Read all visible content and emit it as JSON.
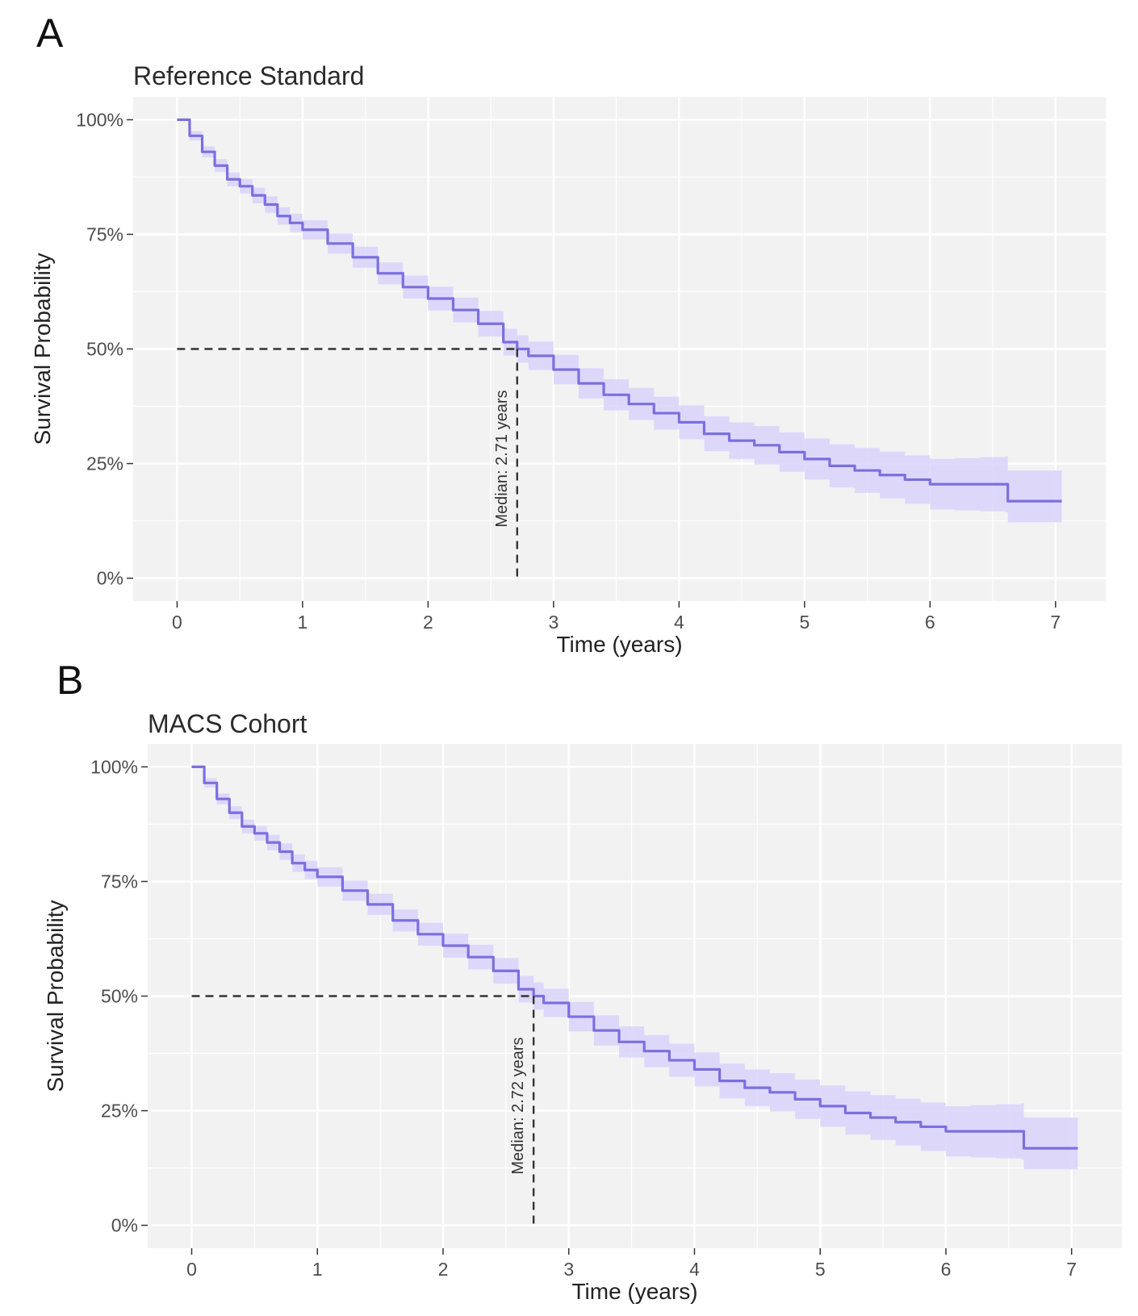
{
  "figure": {
    "panels": [
      "A",
      "B"
    ]
  },
  "chart_data": [
    {
      "panel": "A",
      "type": "line",
      "title": "Reference Standard",
      "xlabel": "Time (years)",
      "ylabel": "Survival Probability",
      "xlim": [
        -0.35,
        7.4
      ],
      "ylim": [
        -0.05,
        1.05
      ],
      "x_ticks": [
        0,
        1,
        2,
        3,
        4,
        5,
        6,
        7
      ],
      "y_ticks": [
        0,
        0.25,
        0.5,
        0.75,
        1.0
      ],
      "y_tick_labels": [
        "0%",
        "25%",
        "50%",
        "75%",
        "100%"
      ],
      "grid": true,
      "median": 2.71,
      "median_label": "Median: 2.71 years",
      "series": [
        {
          "name": "survival",
          "color": "#7b6fe0",
          "band_color": "#d9d4fb",
          "x": [
            0,
            0.1,
            0.2,
            0.3,
            0.4,
            0.5,
            0.6,
            0.7,
            0.8,
            0.9,
            1.0,
            1.2,
            1.4,
            1.6,
            1.8,
            2.0,
            2.2,
            2.4,
            2.6,
            2.71,
            2.8,
            3.0,
            3.2,
            3.4,
            3.6,
            3.8,
            4.0,
            4.2,
            4.4,
            4.6,
            4.8,
            5.0,
            5.2,
            5.4,
            5.6,
            5.8,
            6.0,
            6.2,
            6.4,
            6.6,
            6.62,
            7.05
          ],
          "y": [
            1.0,
            0.965,
            0.93,
            0.9,
            0.87,
            0.855,
            0.835,
            0.815,
            0.79,
            0.775,
            0.76,
            0.73,
            0.7,
            0.665,
            0.635,
            0.61,
            0.585,
            0.555,
            0.515,
            0.5,
            0.485,
            0.455,
            0.425,
            0.4,
            0.38,
            0.36,
            0.34,
            0.315,
            0.3,
            0.29,
            0.275,
            0.26,
            0.245,
            0.235,
            0.225,
            0.215,
            0.205,
            0.205,
            0.205,
            0.205,
            0.168,
            0.168
          ],
          "lower": [
            1.0,
            0.955,
            0.918,
            0.886,
            0.855,
            0.839,
            0.818,
            0.797,
            0.771,
            0.755,
            0.739,
            0.708,
            0.677,
            0.641,
            0.61,
            0.584,
            0.558,
            0.527,
            0.486,
            0.47,
            0.454,
            0.423,
            0.392,
            0.366,
            0.345,
            0.324,
            0.303,
            0.277,
            0.26,
            0.248,
            0.232,
            0.215,
            0.198,
            0.186,
            0.174,
            0.162,
            0.15,
            0.148,
            0.146,
            0.144,
            0.122,
            0.122
          ],
          "upper": [
            1.0,
            0.975,
            0.942,
            0.914,
            0.885,
            0.871,
            0.852,
            0.833,
            0.809,
            0.795,
            0.781,
            0.752,
            0.723,
            0.689,
            0.66,
            0.636,
            0.612,
            0.583,
            0.544,
            0.53,
            0.516,
            0.487,
            0.458,
            0.434,
            0.415,
            0.396,
            0.377,
            0.353,
            0.34,
            0.332,
            0.318,
            0.305,
            0.292,
            0.284,
            0.276,
            0.268,
            0.26,
            0.262,
            0.264,
            0.266,
            0.235,
            0.235
          ]
        }
      ]
    },
    {
      "panel": "B",
      "type": "line",
      "title": "MACS Cohort",
      "xlabel": "Time (years)",
      "ylabel": "Survival Probability",
      "xlim": [
        -0.35,
        7.4
      ],
      "ylim": [
        -0.05,
        1.05
      ],
      "x_ticks": [
        0,
        1,
        2,
        3,
        4,
        5,
        6,
        7
      ],
      "y_ticks": [
        0,
        0.25,
        0.5,
        0.75,
        1.0
      ],
      "y_tick_labels": [
        "0%",
        "25%",
        "50%",
        "75%",
        "100%"
      ],
      "grid": true,
      "median": 2.72,
      "median_label": "Median: 2.72 years",
      "series": [
        {
          "name": "survival",
          "color": "#7b6fe0",
          "band_color": "#d9d4fb",
          "x": [
            0,
            0.1,
            0.2,
            0.3,
            0.4,
            0.5,
            0.6,
            0.7,
            0.8,
            0.9,
            1.0,
            1.2,
            1.4,
            1.6,
            1.8,
            2.0,
            2.2,
            2.4,
            2.6,
            2.72,
            2.8,
            3.0,
            3.2,
            3.4,
            3.6,
            3.8,
            4.0,
            4.2,
            4.4,
            4.6,
            4.8,
            5.0,
            5.2,
            5.4,
            5.6,
            5.8,
            6.0,
            6.2,
            6.4,
            6.6,
            6.62,
            7.05
          ],
          "y": [
            1.0,
            0.965,
            0.93,
            0.9,
            0.87,
            0.855,
            0.835,
            0.815,
            0.79,
            0.775,
            0.76,
            0.73,
            0.7,
            0.665,
            0.635,
            0.61,
            0.585,
            0.555,
            0.515,
            0.5,
            0.485,
            0.455,
            0.425,
            0.4,
            0.38,
            0.36,
            0.34,
            0.315,
            0.3,
            0.29,
            0.275,
            0.26,
            0.245,
            0.235,
            0.225,
            0.215,
            0.205,
            0.205,
            0.205,
            0.205,
            0.168,
            0.168
          ],
          "lower": [
            1.0,
            0.955,
            0.918,
            0.886,
            0.855,
            0.839,
            0.818,
            0.797,
            0.771,
            0.755,
            0.739,
            0.708,
            0.677,
            0.641,
            0.61,
            0.584,
            0.558,
            0.527,
            0.486,
            0.47,
            0.454,
            0.423,
            0.392,
            0.366,
            0.345,
            0.324,
            0.303,
            0.277,
            0.26,
            0.248,
            0.232,
            0.215,
            0.198,
            0.186,
            0.174,
            0.162,
            0.15,
            0.148,
            0.146,
            0.144,
            0.122,
            0.122
          ],
          "upper": [
            1.0,
            0.975,
            0.942,
            0.914,
            0.885,
            0.871,
            0.852,
            0.833,
            0.809,
            0.795,
            0.781,
            0.752,
            0.723,
            0.689,
            0.66,
            0.636,
            0.612,
            0.583,
            0.544,
            0.53,
            0.516,
            0.487,
            0.458,
            0.434,
            0.415,
            0.396,
            0.377,
            0.353,
            0.34,
            0.332,
            0.318,
            0.305,
            0.292,
            0.284,
            0.276,
            0.268,
            0.26,
            0.262,
            0.264,
            0.266,
            0.235,
            0.235
          ]
        }
      ]
    }
  ]
}
